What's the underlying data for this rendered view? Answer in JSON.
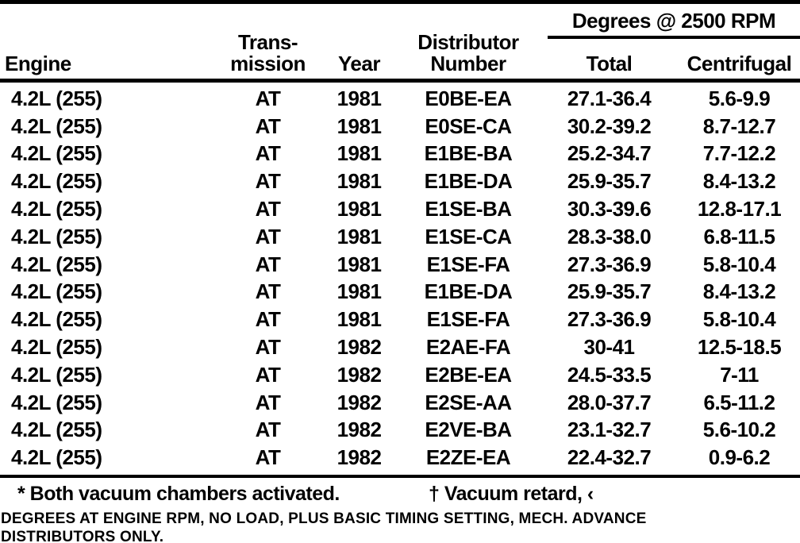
{
  "table": {
    "headers": {
      "engine": "Engine",
      "transmission_line1": "Trans-",
      "transmission_line2": "mission",
      "year": "Year",
      "distributor_line1": "Distributor",
      "distributor_line2": "Number",
      "degrees_group": "Degrees @ 2500 RPM",
      "total": "Total",
      "centrifugal": "Centrifugal"
    },
    "rows": [
      {
        "engine": "4.2L (255)",
        "transmission": "AT",
        "year": "1981",
        "distributor": "E0BE-EA",
        "total": "27.1-36.4",
        "centrifugal": "5.6-9.9"
      },
      {
        "engine": "4.2L (255)",
        "transmission": "AT",
        "year": "1981",
        "distributor": "E0SE-CA",
        "total": "30.2-39.2",
        "centrifugal": "8.7-12.7"
      },
      {
        "engine": "4.2L (255)",
        "transmission": "AT",
        "year": "1981",
        "distributor": "E1BE-BA",
        "total": "25.2-34.7",
        "centrifugal": "7.7-12.2"
      },
      {
        "engine": "4.2L (255)",
        "transmission": "AT",
        "year": "1981",
        "distributor": "E1BE-DA",
        "total": "25.9-35.7",
        "centrifugal": "8.4-13.2"
      },
      {
        "engine": "4.2L (255)",
        "transmission": "AT",
        "year": "1981",
        "distributor": "E1SE-BA",
        "total": "30.3-39.6",
        "centrifugal": "12.8-17.1"
      },
      {
        "engine": "4.2L (255)",
        "transmission": "AT",
        "year": "1981",
        "distributor": "E1SE-CA",
        "total": "28.3-38.0",
        "centrifugal": "6.8-11.5"
      },
      {
        "engine": "4.2L (255)",
        "transmission": "AT",
        "year": "1981",
        "distributor": "E1SE-FA",
        "total": "27.3-36.9",
        "centrifugal": "5.8-10.4"
      },
      {
        "engine": "4.2L (255)",
        "transmission": "AT",
        "year": "1981",
        "distributor": "E1BE-DA",
        "total": "25.9-35.7",
        "centrifugal": "8.4-13.2"
      },
      {
        "engine": "4.2L (255)",
        "transmission": "AT",
        "year": "1981",
        "distributor": "E1SE-FA",
        "total": "27.3-36.9",
        "centrifugal": "5.8-10.4"
      },
      {
        "engine": "4.2L (255)",
        "transmission": "AT",
        "year": "1982",
        "distributor": "E2AE-FA",
        "total": "30-41",
        "centrifugal": "12.5-18.5"
      },
      {
        "engine": "4.2L (255)",
        "transmission": "AT",
        "year": "1982",
        "distributor": "E2BE-EA",
        "total": "24.5-33.5",
        "centrifugal": "7-11"
      },
      {
        "engine": "4.2L (255)",
        "transmission": "AT",
        "year": "1982",
        "distributor": "E2SE-AA",
        "total": "28.0-37.7",
        "centrifugal": "6.5-11.2"
      },
      {
        "engine": "4.2L (255)",
        "transmission": "AT",
        "year": "1982",
        "distributor": "E2VE-BA",
        "total": "23.1-32.7",
        "centrifugal": "5.6-10.2"
      },
      {
        "engine": "4.2L (255)",
        "transmission": "AT",
        "year": "1982",
        "distributor": "E2ZE-EA",
        "total": "22.4-32.7",
        "centrifugal": "0.9-6.2"
      }
    ]
  },
  "footnotes": {
    "both_vacuum": "* Both vacuum chambers activated.",
    "vacuum_retard": "† Vacuum retard, ‹"
  },
  "caption": {
    "line1": "DEGREES AT ENGINE RPM, NO LOAD, PLUS BASIC TIMING SETTING, MECH. ADVANCE",
    "line2": "DISTRIBUTORS ONLY."
  }
}
